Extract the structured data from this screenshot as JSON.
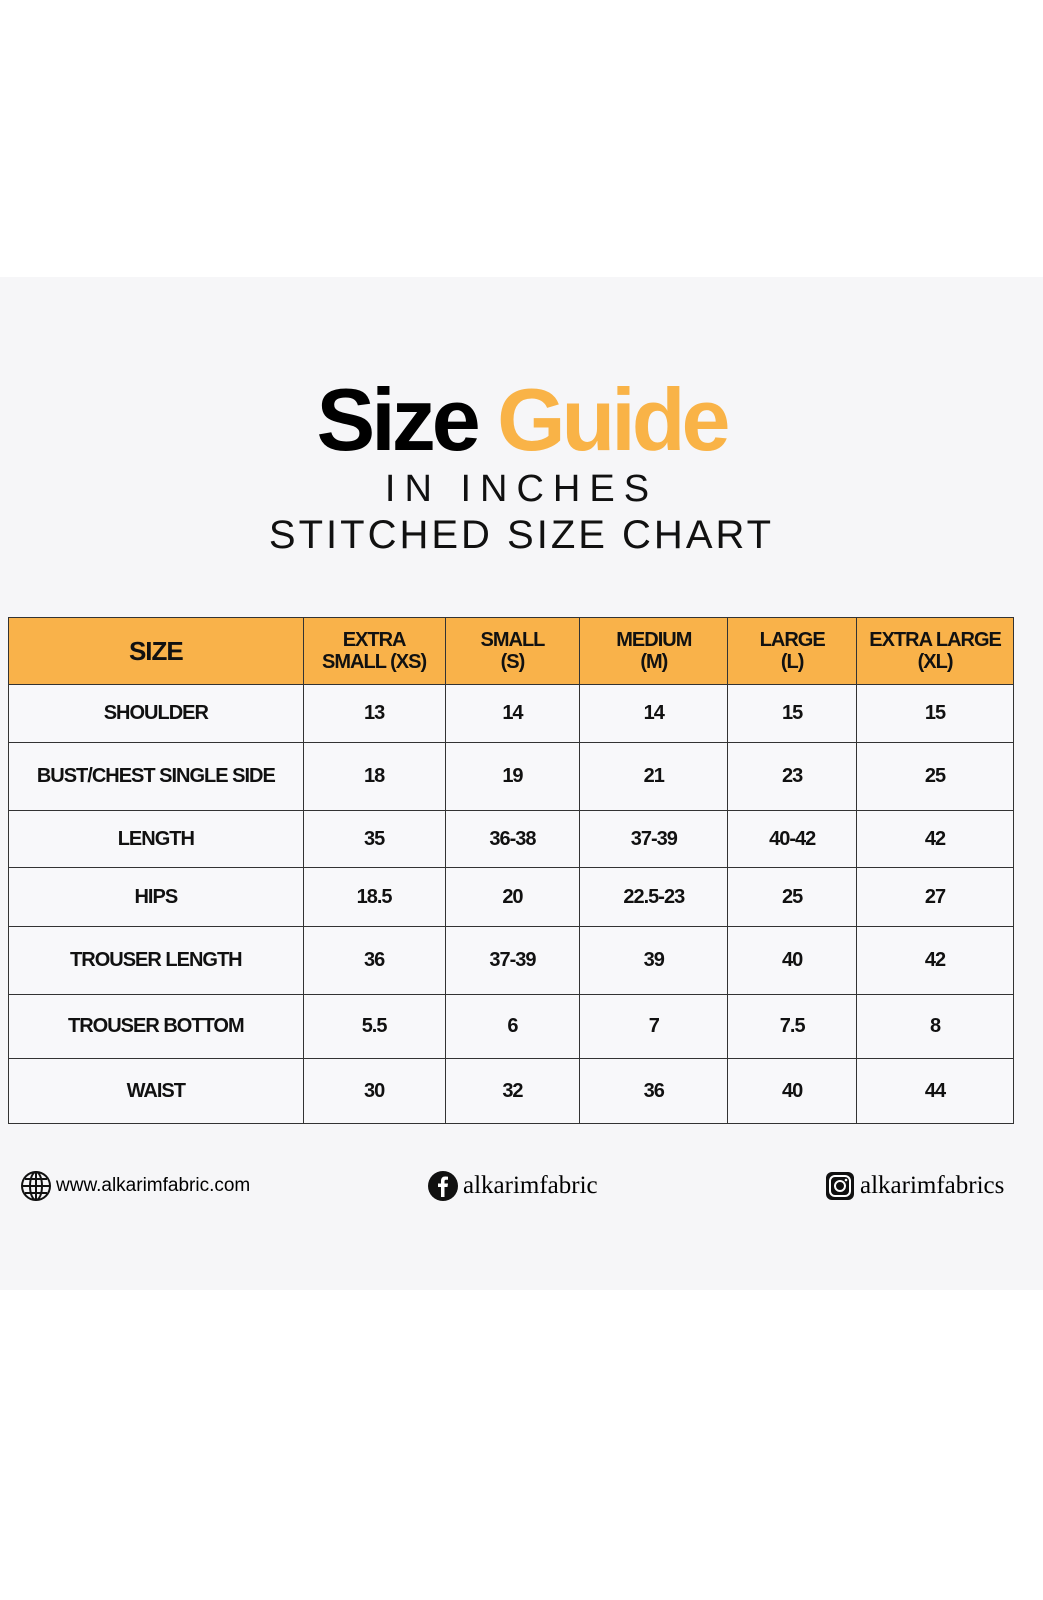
{
  "title": {
    "word1": "Size",
    "word2": "Guide"
  },
  "subtitle1": "IN INCHES",
  "subtitle2": "STITCHED SIZE CHART",
  "colors": {
    "accent": "#f9b24a",
    "text": "#111111"
  },
  "table": {
    "headers": [
      [
        "SIZE"
      ],
      [
        "EXTRA",
        "SMALL (XS)"
      ],
      [
        "SMALL",
        "(S)"
      ],
      [
        "MEDIUM",
        "(M)"
      ],
      [
        "LARGE",
        "(L)"
      ],
      [
        "EXTRA LARGE",
        "(XL)"
      ]
    ],
    "rows": [
      [
        "SHOULDER",
        "13",
        "14",
        "14",
        "15",
        "15"
      ],
      [
        "BUST/CHEST SINGLE SIDE",
        "18",
        "19",
        "21",
        "23",
        "25"
      ],
      [
        "LENGTH",
        "35",
        "36-38",
        "37-39",
        "40-42",
        "42"
      ],
      [
        "HIPS",
        "18.5",
        "20",
        "22.5-23",
        "25",
        "27"
      ],
      [
        "TROUSER LENGTH",
        "36",
        "37-39",
        "39",
        "40",
        "42"
      ],
      [
        "TROUSER BOTTOM",
        "5.5",
        "6",
        "7",
        "7.5",
        "8"
      ],
      [
        "WAIST",
        "30",
        "32",
        "36",
        "40",
        "44"
      ]
    ]
  },
  "footer": {
    "website": "www.alkarimfabric.com",
    "facebook": "alkarimfabric",
    "instagram": "alkarimfabrics",
    "icons": [
      "globe-icon",
      "facebook-icon",
      "instagram-icon"
    ]
  }
}
